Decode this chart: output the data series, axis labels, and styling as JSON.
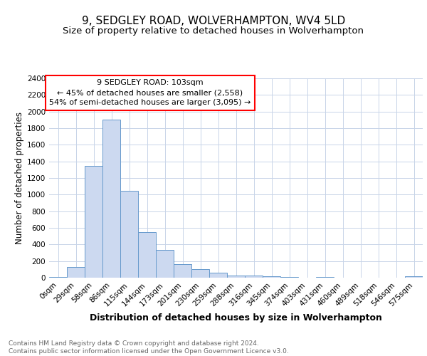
{
  "title1": "9, SEDGLEY ROAD, WOLVERHAMPTON, WV4 5LD",
  "title2": "Size of property relative to detached houses in Wolverhampton",
  "xlabel": "Distribution of detached houses by size in Wolverhampton",
  "ylabel": "Number of detached properties",
  "categories": [
    "0sqm",
    "29sqm",
    "58sqm",
    "86sqm",
    "115sqm",
    "144sqm",
    "173sqm",
    "201sqm",
    "230sqm",
    "259sqm",
    "288sqm",
    "316sqm",
    "345sqm",
    "374sqm",
    "403sqm",
    "431sqm",
    "460sqm",
    "489sqm",
    "518sqm",
    "546sqm",
    "575sqm"
  ],
  "values": [
    10,
    130,
    1350,
    1900,
    1050,
    545,
    335,
    165,
    105,
    60,
    30,
    25,
    20,
    5,
    2,
    5,
    2,
    2,
    2,
    2,
    20
  ],
  "bar_color": "#ccd9f0",
  "bar_edge_color": "#6699cc",
  "annotation_line1": "9 SEDGLEY ROAD: 103sqm",
  "annotation_line2": "← 45% of detached houses are smaller (2,558)",
  "annotation_line3": "54% of semi-detached houses are larger (3,095) →",
  "annotation_box_color": "white",
  "annotation_box_edge_color": "red",
  "ylim": [
    0,
    2400
  ],
  "yticks": [
    0,
    200,
    400,
    600,
    800,
    1000,
    1200,
    1400,
    1600,
    1800,
    2000,
    2200,
    2400
  ],
  "grid_color": "#c8d4e8",
  "background_color": "white",
  "footer_text": "Contains HM Land Registry data © Crown copyright and database right 2024.\nContains public sector information licensed under the Open Government Licence v3.0.",
  "title1_fontsize": 11,
  "title2_fontsize": 9.5,
  "xlabel_fontsize": 9,
  "ylabel_fontsize": 8.5,
  "tick_fontsize": 7.5,
  "annotation_fontsize": 8,
  "footer_fontsize": 6.5
}
